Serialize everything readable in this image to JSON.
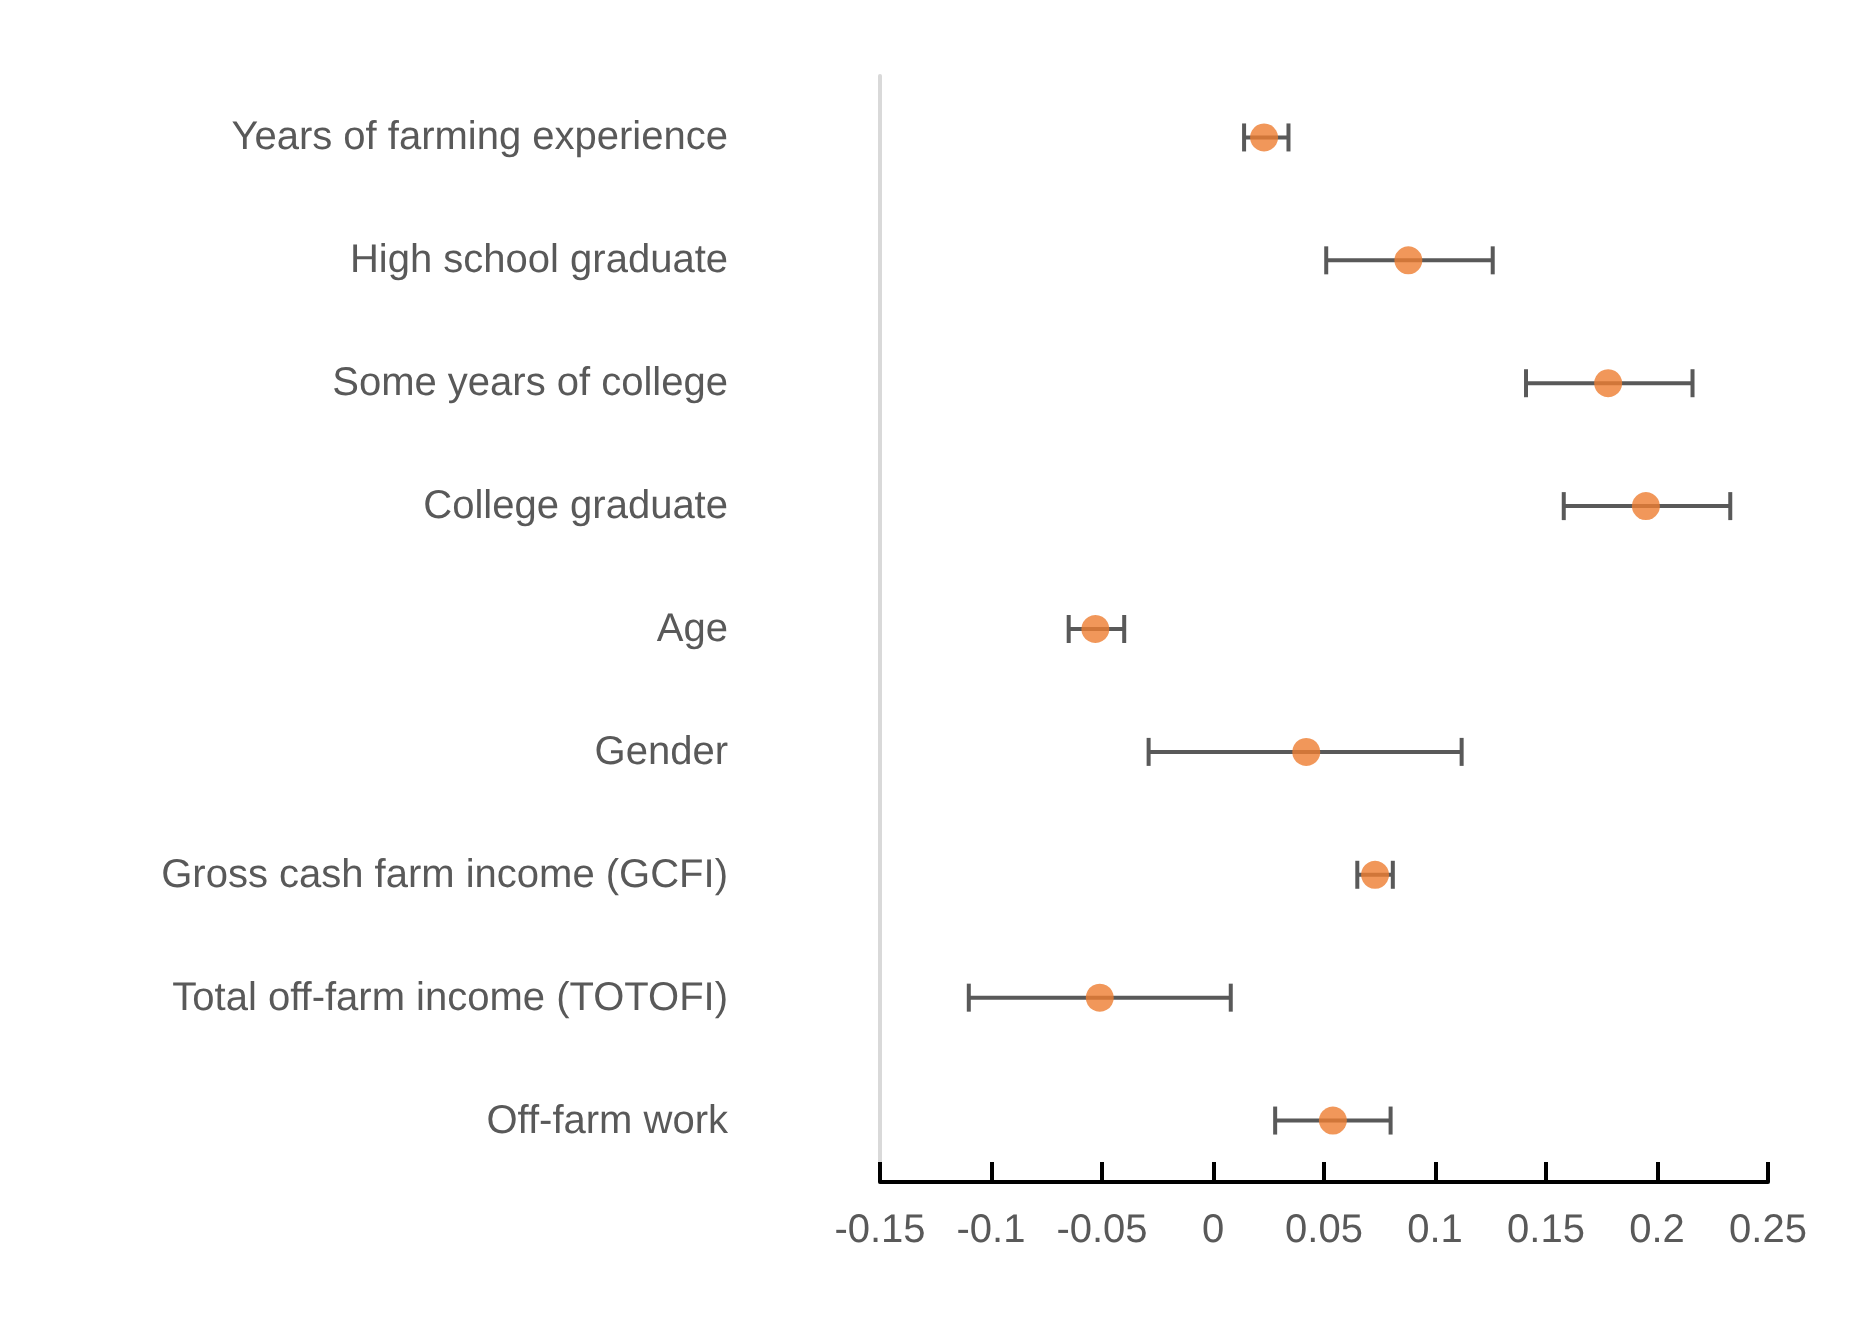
{
  "chart_data": {
    "type": "scatter",
    "orientation": "horizontal",
    "marker": "circle",
    "color": "#ed7d31",
    "categories": [
      "Years of farming experience",
      "High school graduate",
      "Some years of college",
      "College graduate",
      "Age",
      "Gender",
      "Gross cash farm income (GCFI)",
      "Total off-farm income (TOTOFI)",
      "Off-farm work"
    ],
    "values": [
      0.023,
      0.088,
      0.178,
      0.195,
      -0.053,
      0.042,
      0.073,
      -0.051,
      0.054
    ],
    "errors": [
      [
        0.014,
        0.034
      ],
      [
        0.051,
        0.126
      ],
      [
        0.141,
        0.216
      ],
      [
        0.158,
        0.233
      ],
      [
        -0.065,
        -0.04
      ],
      [
        -0.029,
        0.112
      ],
      [
        0.065,
        0.081
      ],
      [
        -0.11,
        0.008
      ],
      [
        0.028,
        0.08
      ]
    ],
    "xlim": [
      -0.15,
      0.25
    ],
    "xticks": [
      -0.15,
      -0.1,
      -0.05,
      0,
      0.05,
      0.1,
      0.15,
      0.2,
      0.25
    ],
    "grid": false
  }
}
